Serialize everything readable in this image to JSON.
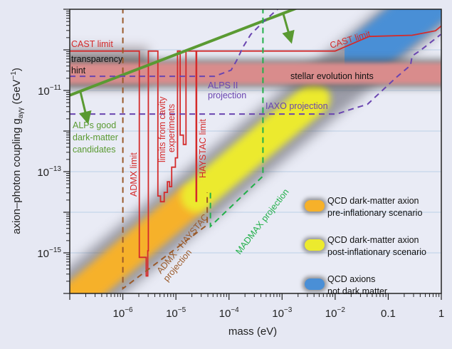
{
  "chart_data": {
    "type": "line",
    "x_scale": "log",
    "y_scale": "log",
    "xlabel": "mass (eV)",
    "ylabel": {
      "main": "axion–photon coupling g",
      "sub": "aγγ",
      "unit_open": " (GeV",
      "unit_sup": "−1",
      "unit_close": ")"
    },
    "xlim_log10": [
      -7,
      0
    ],
    "ylim_log10": [
      -16,
      -9
    ],
    "x_ticks": [
      {
        "log10": -6,
        "base": "10",
        "exp": "−6"
      },
      {
        "log10": -5,
        "base": "10",
        "exp": "−5"
      },
      {
        "log10": -4,
        "base": "10",
        "exp": "−4"
      },
      {
        "log10": -3,
        "base": "10",
        "exp": "−3"
      },
      {
        "log10": -2,
        "base": "10",
        "exp": "−2"
      },
      {
        "log10": -1,
        "base": "0.1",
        "exp": ""
      },
      {
        "log10": 0,
        "base": "1",
        "exp": ""
      }
    ],
    "y_ticks": [
      {
        "log10": -11,
        "base": "10",
        "exp": "−11"
      },
      {
        "log10": -13,
        "base": "10",
        "exp": "−13"
      },
      {
        "log10": -15,
        "base": "10",
        "exp": "−15"
      }
    ],
    "grid": "horizontal-decades",
    "series": [
      {
        "name": "CAST and cavity limits",
        "color": "#d42a2a",
        "style": "solid",
        "points_log10": [
          [
            -7,
            -10.03
          ],
          [
            -5.69,
            -10.03
          ],
          [
            -5.69,
            -15.11
          ],
          [
            -5.56,
            -15.11
          ],
          [
            -5.56,
            -15.57
          ],
          [
            -5.53,
            -15.57
          ],
          [
            -5.53,
            -14.95
          ],
          [
            -5.52,
            -14.95
          ],
          [
            -5.52,
            -10.03
          ],
          [
            -5.34,
            -10.03
          ],
          [
            -5.34,
            -13.6
          ],
          [
            -5.29,
            -13.6
          ],
          [
            -5.29,
            -13.74
          ],
          [
            -5.22,
            -13.74
          ],
          [
            -5.22,
            -13.51
          ],
          [
            -5.16,
            -13.51
          ],
          [
            -5.16,
            -13.25
          ],
          [
            -5.12,
            -13.25
          ],
          [
            -5.12,
            -13.37
          ],
          [
            -5.08,
            -13.37
          ],
          [
            -5.08,
            -12.89
          ],
          [
            -5.01,
            -12.89
          ],
          [
            -5.01,
            -12.66
          ],
          [
            -4.97,
            -12.66
          ],
          [
            -4.97,
            -10.03
          ],
          [
            -4.92,
            -10.03
          ],
          [
            -4.92,
            -12.1
          ],
          [
            -4.86,
            -12.1
          ],
          [
            -4.86,
            -12.33
          ],
          [
            -4.81,
            -12.33
          ],
          [
            -4.81,
            -10.03
          ],
          [
            -4.62,
            -10.03
          ],
          [
            -4.62,
            -13.73
          ],
          [
            -4.61,
            -13.73
          ],
          [
            -4.61,
            -10.03
          ],
          [
            -2.0,
            -10.03
          ],
          [
            -1.36,
            -9.67
          ],
          [
            -0.55,
            -9.64
          ],
          [
            -0.11,
            -9.53
          ],
          [
            0,
            -9.41
          ]
        ]
      },
      {
        "name": "ALPs good dark-matter candidates",
        "color": "#5a9a32",
        "style": "solid",
        "points_log10": [
          [
            -7,
            -11.12
          ],
          [
            -2.7,
            -8.96
          ]
        ]
      },
      {
        "name": "ALPS II projection",
        "color": "#6a45b0",
        "style": "dashed",
        "points_log10": [
          [
            -7,
            -10.65
          ],
          [
            -4.27,
            -10.65
          ],
          [
            -3.96,
            -10.5
          ],
          [
            -3.86,
            -10.27
          ],
          [
            -3.73,
            -9.92
          ],
          [
            -3.59,
            -9.62
          ],
          [
            -3.36,
            -9.32
          ],
          [
            -3.05,
            -8.96
          ]
        ]
      },
      {
        "name": "IAXO projection",
        "color": "#6a45b0",
        "style": "dashed",
        "points_log10": [
          [
            -7,
            -11.58
          ],
          [
            -1.97,
            -11.58
          ],
          [
            -1.74,
            -11.48
          ],
          [
            -1.39,
            -11.34
          ],
          [
            -0.85,
            -10.68
          ],
          [
            -0.58,
            -10.38
          ],
          [
            -0.55,
            -10.15
          ],
          [
            -0.39,
            -10.01
          ],
          [
            -0.01,
            -9.62
          ]
        ]
      },
      {
        "name": "ADMX - HAYSTAC projection",
        "color": "#9a5a2a",
        "style": "dashed",
        "points_log10": [
          [
            -6,
            -8.96
          ],
          [
            -6,
            -15.88
          ],
          [
            -4.41,
            -14.31
          ],
          [
            -4.41,
            -13.51
          ]
        ]
      },
      {
        "name": "MADMAX projection",
        "color": "#22b04a",
        "style": "dashed",
        "points_log10": [
          [
            -3.36,
            -8.96
          ],
          [
            -3.36,
            -13.11
          ],
          [
            -4.35,
            -14.35
          ],
          [
            -4.35,
            -13.51
          ]
        ]
      }
    ],
    "bands": [
      {
        "name": "stellar evolution hints",
        "color": "#d98c8c",
        "y_log10": [
          -10.84,
          -10.32
        ]
      },
      {
        "name": "QCD pre-inflationary",
        "color": "#f6b12a",
        "from_log10": [
          -7.2,
          -16.45
        ],
        "to_log10": [
          -4.75,
          -13.75
        ]
      },
      {
        "name": "QCD post-inflationary",
        "color": "#ecea2e",
        "from_log10": [
          -4.6,
          -13.6
        ],
        "to_log10": [
          -2.4,
          -11.2
        ]
      },
      {
        "name": "QCD not dark matter",
        "color": "#4a8fd6",
        "from_log10": [
          -1.5,
          -10.2
        ],
        "to_log10": [
          0.1,
          -8.5
        ]
      }
    ],
    "arrows_log10": [
      {
        "from": [
          -6.8,
          -11.03
        ],
        "to": [
          -6.68,
          -11.68
        ]
      },
      {
        "from": [
          -2.98,
          -9.1
        ],
        "to": [
          -2.85,
          -9.7
        ]
      }
    ],
    "annotations": {
      "cast_left": "CAST limit",
      "cast_right": "CAST limit",
      "transparency_1": "transparency",
      "transparency_2": "hint",
      "stellar": "stellar evolution hints",
      "alps2_1": "ALPS II",
      "alps2_2": "projection",
      "iaxo": "IAXO projection",
      "alps_dm_1": "ALPs good",
      "alps_dm_2": "dark-matter",
      "alps_dm_3": "candidates",
      "admx": "ADMX limit",
      "cavity_1": "limits from cavity",
      "cavity_2": "experiments",
      "haystac": "HAYSTAC limit",
      "admx_haystac_1": "ADMX - HAYSTAC",
      "admx_haystac_2": "projection",
      "madmax": "MADMAX projection"
    },
    "legend": {
      "placement": "right-middle",
      "items": [
        {
          "color": "#f6b12a",
          "line1": "QCD dark-matter axion",
          "line2": "pre-inflationary scenario"
        },
        {
          "color": "#ecea2e",
          "line1": "QCD dark-matter axion",
          "line2": "post-inflationary scenario"
        },
        {
          "color": "#4a8fd6",
          "line1": "QCD axions",
          "line2": "not dark matter"
        }
      ]
    }
  }
}
